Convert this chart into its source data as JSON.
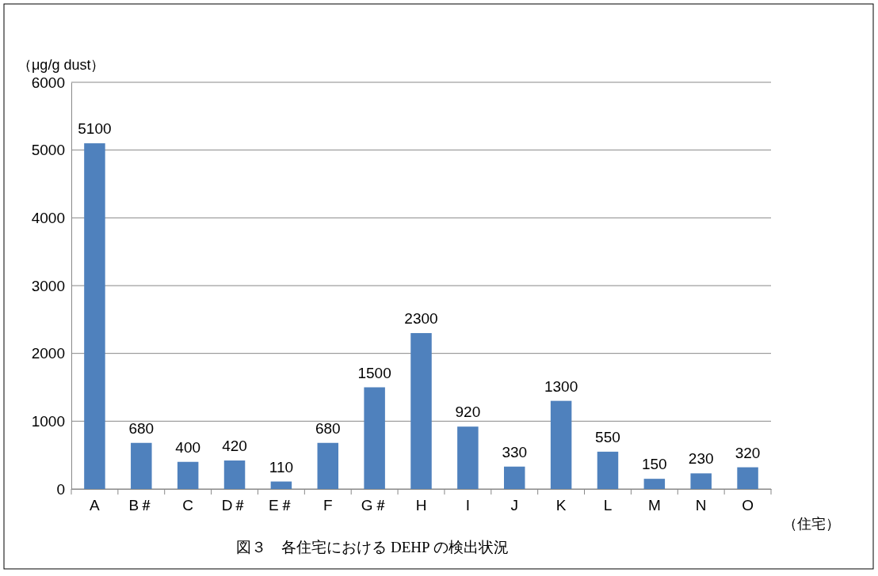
{
  "chart_data": {
    "type": "bar",
    "title": "図３　各住宅における DEHP の検出状況",
    "ylabel": "（μg/g dust）",
    "xlabel": "（住宅）",
    "categories": [
      "A",
      "B＃",
      "C",
      "D＃",
      "E＃",
      "F",
      "G＃",
      "H",
      "I",
      "J",
      "K",
      "L",
      "M",
      "N",
      "O"
    ],
    "values": [
      5100,
      680,
      400,
      420,
      110,
      680,
      1500,
      2300,
      920,
      330,
      1300,
      550,
      150,
      230,
      320
    ],
    "color": "#4f81bd",
    "ylim": [
      0,
      6000
    ],
    "yticks": [
      0,
      1000,
      2000,
      3000,
      4000,
      5000,
      6000
    ],
    "grid": "y",
    "data_labels": true
  }
}
